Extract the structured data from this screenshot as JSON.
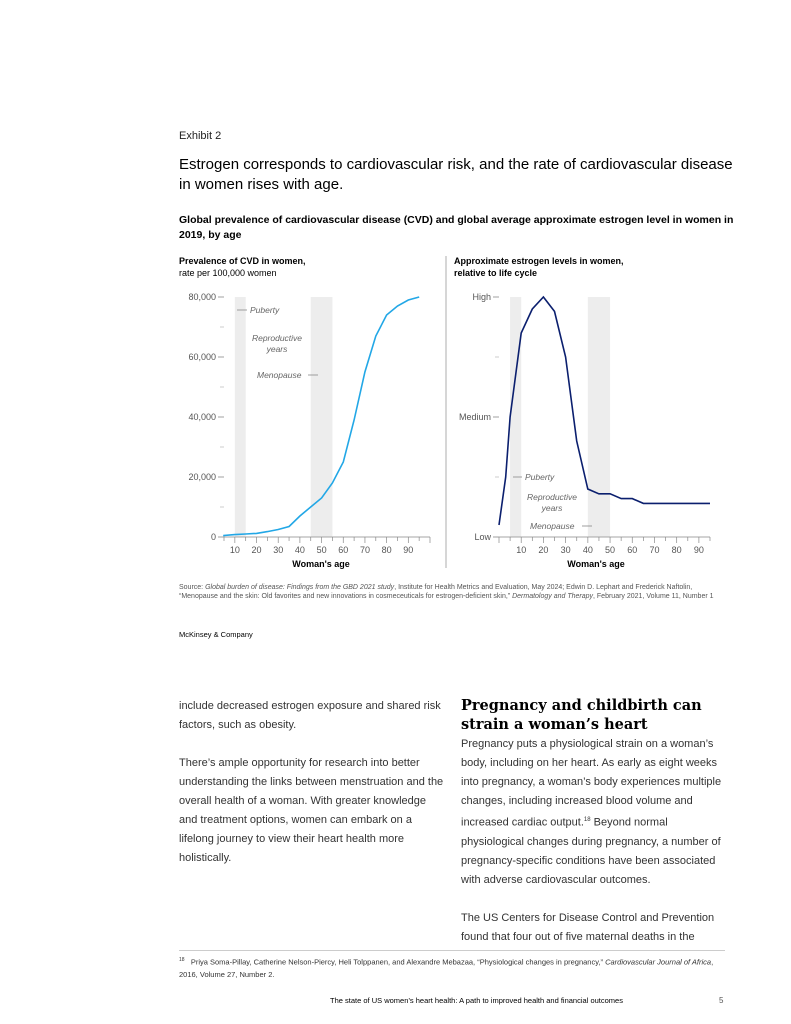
{
  "exhibit": {
    "label": "Exhibit 2",
    "title": "Estrogen corresponds to cardiovascular risk, and the rate of cardiovascular disease in women rises with age.",
    "subtitle": "Global prevalence of cardiovascular disease (CVD) and global average approximate estrogen level in women in 2019, by age"
  },
  "chart_data": [
    {
      "type": "line",
      "title": "Prevalence of CVD in women,",
      "subtitle": "rate per 100,000 women",
      "xlabel": "Woman's age",
      "ylabel": "",
      "x": [
        1,
        5,
        10,
        15,
        20,
        25,
        30,
        35,
        40,
        45,
        50,
        55,
        60,
        65,
        70,
        75,
        80,
        85,
        90,
        95
      ],
      "y": [
        200,
        500,
        800,
        1000,
        1200,
        1800,
        2500,
        3500,
        7000,
        10000,
        13000,
        18000,
        25000,
        39000,
        55000,
        67000,
        74000,
        77000,
        79000,
        80000
      ],
      "ylim": [
        0,
        80000
      ],
      "xlim": [
        5,
        100
      ],
      "yticks": [
        0,
        20000,
        40000,
        60000,
        80000
      ],
      "ytick_labels": [
        "0",
        "20,000",
        "40,000",
        "60,000",
        "80,000"
      ],
      "xtick_labels": [
        "10",
        "20",
        "30",
        "40",
        "50",
        "60",
        "70",
        "80",
        "90"
      ],
      "line_color": "#22a7e6",
      "bands": [
        [
          10,
          15
        ],
        [
          45,
          55
        ]
      ],
      "annotations": [
        "Puberty",
        "Reproductive years",
        "Menopause"
      ]
    },
    {
      "type": "line",
      "title": "Approximate estrogen levels in women,",
      "subtitle": "relative to life cycle",
      "xlabel": "Woman's age",
      "ylabel": "",
      "x": [
        0,
        3,
        5,
        10,
        15,
        20,
        25,
        30,
        35,
        40,
        45,
        50,
        55,
        60,
        65,
        70,
        75,
        80,
        85,
        90,
        95
      ],
      "y": [
        5,
        25,
        50,
        85,
        95,
        100,
        94,
        75,
        40,
        20,
        18,
        18,
        16,
        16,
        14,
        14,
        14,
        14,
        14,
        14,
        14
      ],
      "ylim": [
        0,
        100
      ],
      "xlim": [
        0,
        95
      ],
      "yticks": [
        0,
        50,
        100
      ],
      "ytick_labels": [
        "Low",
        "Medium",
        "High"
      ],
      "xtick_labels": [
        "10",
        "20",
        "30",
        "40",
        "50",
        "60",
        "70",
        "80",
        "90"
      ],
      "line_color": "#0b1f6e",
      "bands": [
        [
          5,
          10
        ],
        [
          40,
          50
        ]
      ],
      "annotations": [
        "Puberty",
        "Reproductive years",
        "Menopause"
      ]
    }
  ],
  "chart_labels": {
    "left_title": "Prevalence of CVD in women,",
    "left_subtitle": "rate per 100,000 women",
    "right_title": "Approximate estrogen levels in women,",
    "right_subtitle": "relative to life cycle",
    "xlabel": "Woman's age",
    "puberty": "Puberty",
    "reproductive_1": "Reproductive",
    "reproductive_2": "years",
    "menopause": "Menopause"
  },
  "source": {
    "prefix": "Source: ",
    "title1": "Global burden of disease: Findings from the GBD 2021 study",
    "mid": ", Institute for Health Metrics and Evaluation, May 2024; Edwin D. Lephart and Frederick Naftolin, “Menopause and the skin: Old favorites and new innovations in cosmeceuticals for estrogen-deficient skin,” ",
    "journal": "Dermatology and Therapy",
    "end": ", February 2021, Volume 11, Number 1"
  },
  "brand": "McKinsey & Company",
  "left_column": {
    "p1": "include decreased estrogen exposure and shared risk factors, such as obesity.",
    "p2": "There’s ample opportunity for research into better understanding the links between menstruation and the overall health of a woman. With greater knowledge and treatment options, women can embark on a lifelong journey to view their heart health more holistically."
  },
  "right_column": {
    "heading": "Pregnancy and childbirth can strain a woman’s heart",
    "p1a": "Pregnancy puts a physiological strain on a woman’s body, including on her heart. As early as eight weeks into pregnancy, a woman’s body experiences multiple changes, including increased blood volume and increased cardiac output.",
    "p1_ref": "18",
    "p1b": " Beyond normal physiological changes during pregnancy, a number of pregnancy-specific conditions have been associated with adverse cardiovascular outcomes.",
    "p2": "The US Centers for Disease Control and Prevention found that four out of five maternal deaths in the"
  },
  "footnote": {
    "num": "18",
    "text": "Priya Soma-Pillay, Catherine Nelson-Piercy, Heli Tolppanen, and Alexandre Mebazaa, “Physiological changes in pregnancy,” ",
    "journal": "Cardiovascular Journal of Africa",
    "end": ", 2016, Volume 27, Number 2."
  },
  "running_footer": "The state of US women’s heart health: A path to improved health and financial outcomes",
  "page_number": "5"
}
